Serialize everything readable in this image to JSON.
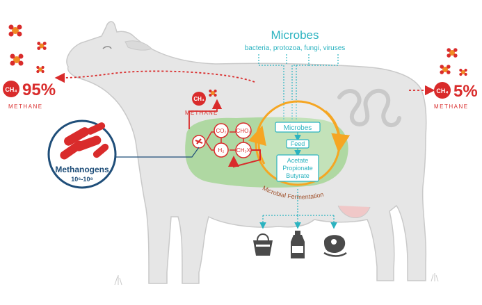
{
  "microbes": {
    "title": "Microbes",
    "subtitle": "bacteria, protozoa, fungi, viruses"
  },
  "left_emission": {
    "ch4_label": "CH₄",
    "percent": "95%",
    "label": "METHANE"
  },
  "right_emission": {
    "ch4_label": "CH₄",
    "percent": "5%",
    "label": "METHANE"
  },
  "mid_emission": {
    "ch4_label": "CH₄",
    "label": "METHANE"
  },
  "methanogens": {
    "title": "Methanogens",
    "count": "10⁶-10⁸"
  },
  "rumen_cycle": {
    "microbes_box": "Microbes",
    "feed_box": "Feed",
    "products": [
      "Acetate",
      "Propionate",
      "Butyrate"
    ],
    "arc_label": "Microbial Fermentation"
  },
  "molecules": {
    "co2": "CO₂",
    "cho2": "CHO₂",
    "h2": "H₂",
    "ch3x": "CH₃X"
  },
  "products_icons": [
    "handbag-icon",
    "milk-bottle-icon",
    "steak-icon"
  ],
  "colors": {
    "accent_red": "#d92b2b",
    "accent_orange": "#f5a623",
    "teal": "#2bb3c0",
    "rumen_green": "#a9d69a",
    "cow_gray": "#e6e6e6",
    "navy": "#1f4e79"
  }
}
